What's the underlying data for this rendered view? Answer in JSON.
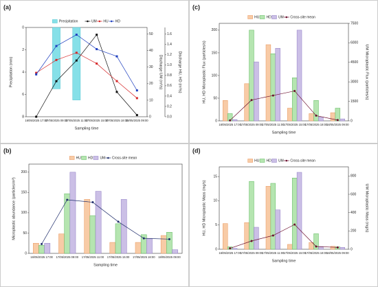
{
  "chart_data": [
    {
      "label": "(a)",
      "type": "combo",
      "categories": [
        "16/05/2025 17:00",
        "17/05/2025 09:00",
        "17/05/2025 11:00",
        "17/05/2025 15:00",
        "17/05/2025 18:00",
        "18/05/2025 09:00"
      ],
      "xlabel": "Sampling time",
      "ylabel": "Precipitation (mm)",
      "y2label": "Discharge UM (m³/s)",
      "y3label": "Discharge HU, HD (m³/s)",
      "ylim": [
        0,
        8
      ],
      "y_inverted": true,
      "yticks": [
        0,
        2,
        4,
        6,
        8
      ],
      "y2lim": [
        0,
        54
      ],
      "y2ticks": [
        0,
        10,
        20,
        30,
        40,
        50
      ],
      "y3lim": [
        0,
        1.73
      ],
      "y3ticks": [
        {
          "value": 0,
          "label": "0.0"
        },
        0.2,
        0.4,
        0.6,
        0.8,
        {
          "value": 1,
          "label": "1.0"
        },
        1.2,
        1.4,
        1.6
      ],
      "series": [
        {
          "name": "Precipitation",
          "kind": "bar",
          "axis": "y",
          "color": "#86e0e8",
          "values": [
            null,
            5.5,
            6.5,
            null,
            null,
            null
          ]
        },
        {
          "name": "UM",
          "kind": "line",
          "axis": "y2",
          "color": "#111111",
          "values": [
            0,
            21.5,
            34,
            49.6,
            15,
            1
          ]
        },
        {
          "name": "HU",
          "kind": "line",
          "axis": "y3",
          "color": "#d62728",
          "values": [
            0.85,
            1.1,
            1.24,
            1.03,
            0.69,
            0.36
          ]
        },
        {
          "name": "HD",
          "kind": "line",
          "axis": "y3",
          "color": "#1f3fbf",
          "values": [
            0.82,
            1.37,
            1.59,
            1.31,
            1.17,
            0.51
          ]
        }
      ]
    },
    {
      "label": "(b)",
      "type": "bar",
      "categories": [
        "16/05/2025 17:00",
        "17/05/2025 09:00",
        "17/05/2025 11:00",
        "17/05/2025 15:00",
        "17/05/2025 18:00",
        "18/05/2025 09:00"
      ],
      "xlabel": "Sampling time",
      "ylabel": "Microplastic abundance (particles/m³)",
      "ylim": [
        0,
        220
      ],
      "yticks": [
        0,
        50,
        100,
        150,
        200
      ],
      "series": [
        {
          "name": "HU",
          "kind": "bar",
          "axis": "y",
          "color": "#f8cba6",
          "values": [
            25,
            48,
            133,
            27,
            27,
            44
          ]
        },
        {
          "name": "HD",
          "kind": "bar",
          "axis": "y",
          "color": "#b5e5b0",
          "values": [
            20,
            147,
            93,
            73,
            46,
            52
          ]
        },
        {
          "name": "UM",
          "kind": "bar",
          "axis": "y",
          "color": "#cbbfe6",
          "values": [
            25,
            200,
            153,
            133,
            37,
            9
          ]
        },
        {
          "name": "Cross-site mean",
          "kind": "line",
          "axis": "y",
          "color": "#1f2d6b",
          "values": [
            23,
            132,
            126,
            78,
            37,
            35
          ]
        }
      ]
    },
    {
      "label": "(c)",
      "type": "bar",
      "categories": [
        "16/05/2025 17:00",
        "17/05/2025 09:00",
        "17/05/2025 11:00",
        "17/05/2025 15:00",
        "17/05/2025 18:00",
        "18/05/2025 09:00"
      ],
      "xlabel": "Sampling time",
      "ylabel": "HU, HD Microplastic Flux (particles/s)",
      "y2label": "UM Microplastic Flux (particles/s)",
      "ylim": [
        0,
        215
      ],
      "yticks": [
        0,
        50,
        100,
        150,
        200
      ],
      "y2lim": [
        0,
        7500
      ],
      "y2ticks": [
        0,
        1500,
        3000,
        4500,
        6000,
        7500
      ],
      "series": [
        {
          "name": "HU",
          "kind": "bar",
          "axis": "y",
          "color": "#f8cba6",
          "values": [
            45,
            82,
            168,
            28,
            16,
            18
          ]
        },
        {
          "name": "HD",
          "kind": "bar",
          "axis": "y",
          "color": "#b5e5b0",
          "values": [
            16,
            200,
            148,
            95,
            45,
            28
          ]
        },
        {
          "name": "UM",
          "kind": "bar",
          "axis": "y2",
          "color": "#cbbfe6",
          "values": [
            100,
            4535,
            5581,
            6977,
            300,
            150
          ]
        },
        {
          "name": "Cross-site mean",
          "kind": "line",
          "axis": "y2",
          "color": "#6b0f2e",
          "values": [
            30,
            1600,
            1950,
            2300,
            400,
            60
          ]
        }
      ]
    },
    {
      "label": "(d)",
      "type": "bar",
      "categories": [
        "16/05/2025 17:00",
        "17/05/2025 09:00",
        "17/05/2025 11:00",
        "17/05/2025 15:00",
        "17/05/2025 18:00",
        "18/05/2025 09:00"
      ],
      "xlabel": "Sampling time",
      "ylabel": "HU, HD Microplastic Mass (mg/s)",
      "y2label": "UM Microplastic Mass (mg/s)",
      "ylim": [
        0,
        17
      ],
      "yticks": [
        0,
        5,
        10,
        15
      ],
      "y2lim": [
        0,
        900
      ],
      "y2ticks": [
        0,
        200,
        400,
        600,
        800
      ],
      "series": [
        {
          "name": "HU",
          "kind": "bar",
          "axis": "y",
          "color": "#f8cba6",
          "values": [
            5.3,
            5.5,
            13,
            1,
            1.4,
            0.6
          ]
        },
        {
          "name": "HD",
          "kind": "bar",
          "axis": "y",
          "color": "#b5e5b0",
          "values": [
            0.5,
            14,
            13.6,
            14.7,
            3.2,
            0.5
          ]
        },
        {
          "name": "UM",
          "kind": "bar",
          "axis": "y2",
          "color": "#cbbfe6",
          "values": [
            10,
            240,
            430,
            840,
            30,
            20
          ]
        },
        {
          "name": "Cross-site mean",
          "kind": "line",
          "axis": "y2",
          "color": "#6b0f2e",
          "values": [
            10,
            90,
            150,
            270,
            30,
            20
          ]
        }
      ]
    }
  ]
}
